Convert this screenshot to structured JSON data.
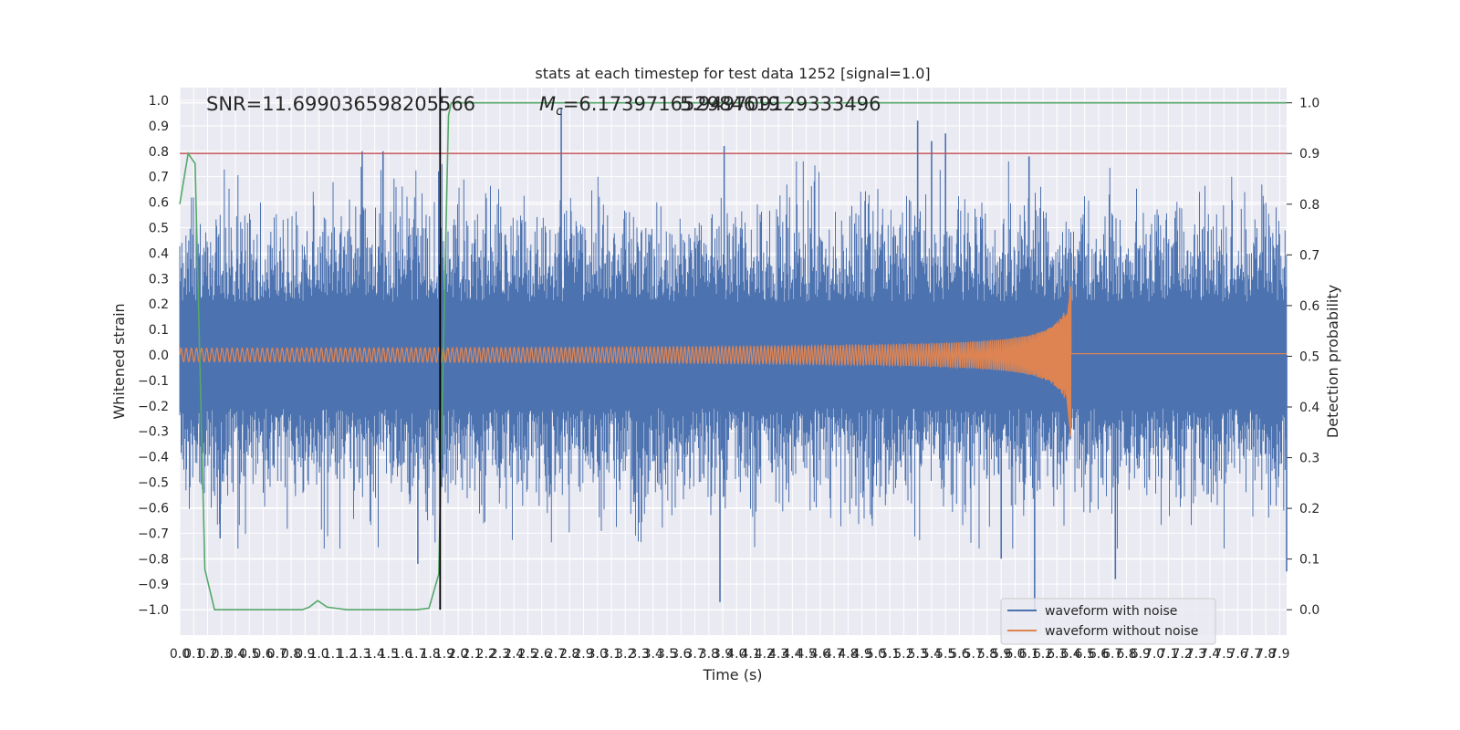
{
  "chart_data": {
    "type": "line",
    "title": "stats at each timestep for test data 1252 [signal=1.0]",
    "xlabel": "Time (s)",
    "ylabel": "Whitened strain",
    "ylabel_right": "Detection probability",
    "xlim": [
      0.0,
      7.95
    ],
    "ylim": [
      -1.1,
      1.05
    ],
    "ylim_right": [
      -0.05,
      1.03
    ],
    "x_ticks": [
      "0.0",
      "0.1",
      "0.2",
      "0.3",
      "0.4",
      "0.5",
      "0.6",
      "0.7",
      "0.8",
      "0.9",
      "1.0",
      "1.1",
      "1.2",
      "1.3",
      "1.4",
      "1.5",
      "1.6",
      "1.7",
      "1.8",
      "1.9",
      "2.0",
      "2.1",
      "2.2",
      "2.3",
      "2.4",
      "2.5",
      "2.6",
      "2.7",
      "2.8",
      "2.9",
      "3.0",
      "3.1",
      "3.2",
      "3.3",
      "3.4",
      "3.5",
      "3.6",
      "3.7",
      "3.8",
      "3.9",
      "4.0",
      "4.1",
      "4.2",
      "4.3",
      "4.4",
      "4.5",
      "4.6",
      "4.7",
      "4.8",
      "4.9",
      "5.0",
      "5.1",
      "5.2",
      "5.3",
      "5.4",
      "5.5",
      "5.6",
      "5.7",
      "5.8",
      "5.9",
      "6.0",
      "6.1",
      "6.2",
      "6.3",
      "6.4",
      "6.5",
      "6.6",
      "6.7",
      "6.8",
      "6.9",
      "7.0",
      "7.1",
      "7.2",
      "7.3",
      "7.4",
      "7.5",
      "7.6",
      "7.7",
      "7.8",
      "7.9"
    ],
    "y_ticks": [
      "1.0",
      "0.9",
      "0.8",
      "0.7",
      "0.6",
      "0.5",
      "0.4",
      "0.3",
      "0.2",
      "0.1",
      "0.0",
      "−0.1",
      "−0.2",
      "−0.3",
      "−0.4",
      "−0.5",
      "−0.6",
      "−0.7",
      "−0.8",
      "−0.9",
      "−1.0"
    ],
    "y_ticks_right": [
      "1.0",
      "0.9",
      "0.8",
      "0.7",
      "0.6",
      "0.5",
      "0.4",
      "0.3",
      "0.2",
      "0.1",
      "0.0"
    ],
    "annotations": {
      "snr": "SNR=11.699036598205566",
      "mc_prefix": "M",
      "mc_sub": "c",
      "mc_value": "=6.173971652984619",
      "overlap": "5.949709129333496"
    },
    "series": [
      {
        "name": "waveform with noise",
        "color": "#4c72b0",
        "kind": "noise",
        "typical_amplitude": 0.38,
        "extreme_peaks": [
          {
            "x": 2.74,
            "y": 0.97
          },
          {
            "x": 1.31,
            "y": 0.8
          },
          {
            "x": 1.46,
            "y": 0.8
          },
          {
            "x": 3.91,
            "y": 0.82
          },
          {
            "x": 5.4,
            "y": 0.84
          },
          {
            "x": 5.5,
            "y": 0.87
          },
          {
            "x": 5.3,
            "y": 0.92
          },
          {
            "x": 6.1,
            "y": 0.78
          },
          {
            "x": 3.88,
            "y": -0.97
          },
          {
            "x": 6.14,
            "y": -1.0
          },
          {
            "x": 6.72,
            "y": -0.88
          },
          {
            "x": 1.71,
            "y": -0.82
          },
          {
            "x": 7.95,
            "y": -0.85
          },
          {
            "x": 0.29,
            "y": -0.72
          },
          {
            "x": 5.9,
            "y": -0.8
          }
        ]
      },
      {
        "name": "waveform without noise",
        "color": "#dd8452",
        "kind": "chirp",
        "merger_time": 6.4,
        "start_amplitude": 0.02,
        "peak_amplitude": 0.27,
        "peak_trough": -0.33,
        "ringdown_level": 0.005
      },
      {
        "name": "detection probability",
        "color": "#55a868",
        "axis": "right",
        "x": [
          0.0,
          0.06,
          0.11,
          0.18,
          0.25,
          0.5,
          0.75,
          0.88,
          0.93,
          0.99,
          1.06,
          1.2,
          1.5,
          1.7,
          1.79,
          1.86,
          1.9,
          1.93,
          1.95,
          2.5,
          3.0,
          4.0,
          5.0,
          6.0,
          7.0,
          7.95
        ],
        "y": [
          0.8,
          0.9,
          0.88,
          0.08,
          0.0,
          0.0,
          0.0,
          0.0,
          0.005,
          0.018,
          0.005,
          0.0,
          0.0,
          0.0,
          0.003,
          0.07,
          0.6,
          0.975,
          1.0,
          1.0,
          1.0,
          1.0,
          1.0,
          1.0,
          1.0,
          1.0
        ]
      }
    ],
    "threshold": {
      "value": 0.9,
      "axis": "right",
      "color": "#c44e52"
    },
    "marker_line": {
      "x": 1.87,
      "color": "#000000"
    },
    "legend": {
      "placement": "lower-right",
      "items": [
        {
          "label": "waveform with noise",
          "color": "#4c72b0"
        },
        {
          "label": "waveform without noise",
          "color": "#dd8452"
        }
      ]
    },
    "grid": true,
    "background": "#eaeaf2"
  }
}
